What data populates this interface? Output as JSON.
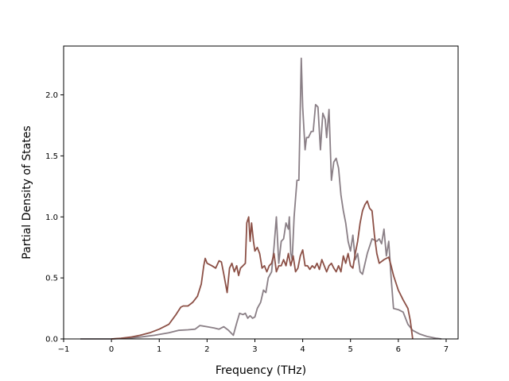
{
  "chart_data": {
    "type": "line",
    "xlabel": "Frequency (THz)",
    "ylabel": "Partial Density of States",
    "xlim": [
      -1,
      7.25
    ],
    "ylim": [
      0,
      2.4
    ],
    "xticks": [
      "−1",
      "0",
      "1",
      "2",
      "3",
      "4",
      "5",
      "6",
      "7"
    ],
    "yticks": [
      "0.0",
      "0.5",
      "1.0",
      "1.5",
      "2.0"
    ],
    "grid": false,
    "series": [
      {
        "color": "#8a7f86",
        "points": [
          [
            -0.65,
            0.0
          ],
          [
            0.0,
            0.0
          ],
          [
            0.3,
            0.005
          ],
          [
            0.6,
            0.015
          ],
          [
            0.9,
            0.03
          ],
          [
            1.2,
            0.05
          ],
          [
            1.4,
            0.07
          ],
          [
            1.6,
            0.075
          ],
          [
            1.75,
            0.08
          ],
          [
            1.85,
            0.11
          ],
          [
            2.0,
            0.1
          ],
          [
            2.15,
            0.09
          ],
          [
            2.25,
            0.08
          ],
          [
            2.35,
            0.1
          ],
          [
            2.45,
            0.07
          ],
          [
            2.55,
            0.03
          ],
          [
            2.62,
            0.13
          ],
          [
            2.68,
            0.21
          ],
          [
            2.75,
            0.2
          ],
          [
            2.8,
            0.21
          ],
          [
            2.85,
            0.17
          ],
          [
            2.9,
            0.19
          ],
          [
            2.95,
            0.17
          ],
          [
            3.0,
            0.18
          ],
          [
            3.05,
            0.25
          ],
          [
            3.12,
            0.3
          ],
          [
            3.18,
            0.4
          ],
          [
            3.23,
            0.38
          ],
          [
            3.28,
            0.5
          ],
          [
            3.35,
            0.55
          ],
          [
            3.4,
            0.75
          ],
          [
            3.45,
            1.0
          ],
          [
            3.5,
            0.62
          ],
          [
            3.55,
            0.8
          ],
          [
            3.6,
            0.82
          ],
          [
            3.65,
            0.95
          ],
          [
            3.7,
            0.9
          ],
          [
            3.72,
            1.0
          ],
          [
            3.75,
            0.7
          ],
          [
            3.78,
            0.65
          ],
          [
            3.82,
            1.0
          ],
          [
            3.88,
            1.3
          ],
          [
            3.92,
            1.3
          ],
          [
            3.97,
            2.3
          ],
          [
            4.0,
            1.9
          ],
          [
            4.05,
            1.55
          ],
          [
            4.08,
            1.65
          ],
          [
            4.12,
            1.65
          ],
          [
            4.18,
            1.7
          ],
          [
            4.22,
            1.7
          ],
          [
            4.27,
            1.92
          ],
          [
            4.32,
            1.9
          ],
          [
            4.37,
            1.55
          ],
          [
            4.42,
            1.85
          ],
          [
            4.47,
            1.8
          ],
          [
            4.5,
            1.65
          ],
          [
            4.55,
            1.88
          ],
          [
            4.6,
            1.3
          ],
          [
            4.65,
            1.45
          ],
          [
            4.7,
            1.48
          ],
          [
            4.75,
            1.4
          ],
          [
            4.8,
            1.18
          ],
          [
            4.85,
            1.05
          ],
          [
            4.9,
            0.95
          ],
          [
            4.95,
            0.8
          ],
          [
            5.0,
            0.72
          ],
          [
            5.05,
            0.85
          ],
          [
            5.1,
            0.65
          ],
          [
            5.15,
            0.7
          ],
          [
            5.2,
            0.55
          ],
          [
            5.25,
            0.53
          ],
          [
            5.35,
            0.7
          ],
          [
            5.45,
            0.82
          ],
          [
            5.55,
            0.8
          ],
          [
            5.6,
            0.82
          ],
          [
            5.65,
            0.78
          ],
          [
            5.7,
            0.9
          ],
          [
            5.75,
            0.68
          ],
          [
            5.8,
            0.8
          ],
          [
            5.85,
            0.5
          ],
          [
            5.9,
            0.25
          ],
          [
            6.0,
            0.24
          ],
          [
            6.1,
            0.22
          ],
          [
            6.2,
            0.12
          ],
          [
            6.3,
            0.07
          ],
          [
            6.45,
            0.04
          ],
          [
            6.6,
            0.02
          ],
          [
            6.8,
            0.005
          ],
          [
            6.9,
            0.0
          ]
        ]
      },
      {
        "color": "#8c5046",
        "points": [
          [
            0.0,
            0.0
          ],
          [
            0.2,
            0.005
          ],
          [
            0.4,
            0.015
          ],
          [
            0.6,
            0.03
          ],
          [
            0.8,
            0.05
          ],
          [
            1.0,
            0.08
          ],
          [
            1.2,
            0.12
          ],
          [
            1.35,
            0.2
          ],
          [
            1.45,
            0.26
          ],
          [
            1.5,
            0.27
          ],
          [
            1.6,
            0.27
          ],
          [
            1.7,
            0.3
          ],
          [
            1.8,
            0.35
          ],
          [
            1.88,
            0.45
          ],
          [
            1.93,
            0.6
          ],
          [
            1.96,
            0.66
          ],
          [
            2.0,
            0.62
          ],
          [
            2.1,
            0.6
          ],
          [
            2.18,
            0.58
          ],
          [
            2.25,
            0.64
          ],
          [
            2.3,
            0.63
          ],
          [
            2.35,
            0.53
          ],
          [
            2.42,
            0.38
          ],
          [
            2.47,
            0.58
          ],
          [
            2.52,
            0.62
          ],
          [
            2.57,
            0.55
          ],
          [
            2.62,
            0.6
          ],
          [
            2.66,
            0.52
          ],
          [
            2.7,
            0.58
          ],
          [
            2.75,
            0.6
          ],
          [
            2.8,
            0.62
          ],
          [
            2.83,
            0.95
          ],
          [
            2.87,
            1.0
          ],
          [
            2.9,
            0.8
          ],
          [
            2.93,
            0.95
          ],
          [
            2.97,
            0.8
          ],
          [
            3.0,
            0.72
          ],
          [
            3.05,
            0.75
          ],
          [
            3.1,
            0.7
          ],
          [
            3.15,
            0.58
          ],
          [
            3.2,
            0.6
          ],
          [
            3.25,
            0.55
          ],
          [
            3.3,
            0.6
          ],
          [
            3.35,
            0.62
          ],
          [
            3.4,
            0.7
          ],
          [
            3.45,
            0.55
          ],
          [
            3.5,
            0.6
          ],
          [
            3.55,
            0.6
          ],
          [
            3.6,
            0.65
          ],
          [
            3.65,
            0.6
          ],
          [
            3.7,
            0.7
          ],
          [
            3.75,
            0.6
          ],
          [
            3.8,
            0.68
          ],
          [
            3.85,
            0.55
          ],
          [
            3.9,
            0.58
          ],
          [
            3.95,
            0.68
          ],
          [
            4.0,
            0.73
          ],
          [
            4.05,
            0.6
          ],
          [
            4.1,
            0.6
          ],
          [
            4.15,
            0.57
          ],
          [
            4.2,
            0.6
          ],
          [
            4.25,
            0.58
          ],
          [
            4.3,
            0.62
          ],
          [
            4.35,
            0.57
          ],
          [
            4.4,
            0.65
          ],
          [
            4.45,
            0.6
          ],
          [
            4.5,
            0.55
          ],
          [
            4.55,
            0.6
          ],
          [
            4.6,
            0.62
          ],
          [
            4.65,
            0.58
          ],
          [
            4.7,
            0.55
          ],
          [
            4.75,
            0.6
          ],
          [
            4.8,
            0.55
          ],
          [
            4.85,
            0.68
          ],
          [
            4.9,
            0.62
          ],
          [
            4.95,
            0.7
          ],
          [
            5.0,
            0.6
          ],
          [
            5.05,
            0.58
          ],
          [
            5.1,
            0.7
          ],
          [
            5.15,
            0.8
          ],
          [
            5.2,
            0.95
          ],
          [
            5.25,
            1.05
          ],
          [
            5.3,
            1.1
          ],
          [
            5.35,
            1.13
          ],
          [
            5.4,
            1.07
          ],
          [
            5.45,
            1.05
          ],
          [
            5.5,
            0.85
          ],
          [
            5.55,
            0.7
          ],
          [
            5.6,
            0.62
          ],
          [
            5.7,
            0.65
          ],
          [
            5.8,
            0.67
          ],
          [
            5.85,
            0.6
          ],
          [
            5.9,
            0.52
          ],
          [
            6.0,
            0.4
          ],
          [
            6.1,
            0.32
          ],
          [
            6.2,
            0.25
          ],
          [
            6.25,
            0.15
          ],
          [
            6.3,
            0.0
          ]
        ]
      }
    ]
  }
}
